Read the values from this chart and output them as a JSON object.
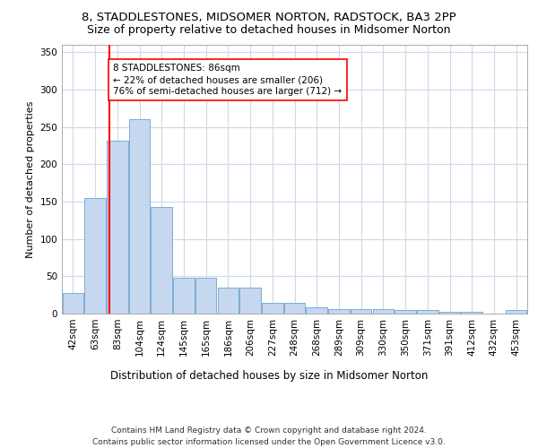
{
  "title1": "8, STADDLESTONES, MIDSOMER NORTON, RADSTOCK, BA3 2PP",
  "title2": "Size of property relative to detached houses in Midsomer Norton",
  "xlabel": "Distribution of detached houses by size in Midsomer Norton",
  "ylabel": "Number of detached properties",
  "footer": "Contains HM Land Registry data © Crown copyright and database right 2024.\nContains public sector information licensed under the Open Government Licence v3.0.",
  "bar_labels": [
    "42sqm",
    "63sqm",
    "83sqm",
    "104sqm",
    "124sqm",
    "145sqm",
    "165sqm",
    "186sqm",
    "206sqm",
    "227sqm",
    "248sqm",
    "268sqm",
    "289sqm",
    "309sqm",
    "330sqm",
    "350sqm",
    "371sqm",
    "391sqm",
    "412sqm",
    "432sqm",
    "453sqm"
  ],
  "bar_values": [
    28,
    155,
    232,
    260,
    143,
    48,
    48,
    35,
    35,
    15,
    15,
    8,
    6,
    6,
    6,
    5,
    5,
    3,
    2,
    0,
    5
  ],
  "bar_color": "#c5d8f0",
  "bar_edge_color": "#7aadd4",
  "property_line_label": "8 STADDLESTONES: 86sqm",
  "annotation_line1": "← 22% of detached houses are smaller (206)",
  "annotation_line2": "76% of semi-detached houses are larger (712) →",
  "vline_color": "red",
  "ylim": [
    0,
    360
  ],
  "yticks": [
    0,
    50,
    100,
    150,
    200,
    250,
    300,
    350
  ],
  "grid_color": "#d0d8e8",
  "title1_fontsize": 9.5,
  "title2_fontsize": 9,
  "xlabel_fontsize": 8.5,
  "ylabel_fontsize": 8,
  "tick_fontsize": 7.5,
  "footer_fontsize": 6.5,
  "annot_fontsize": 7.5
}
